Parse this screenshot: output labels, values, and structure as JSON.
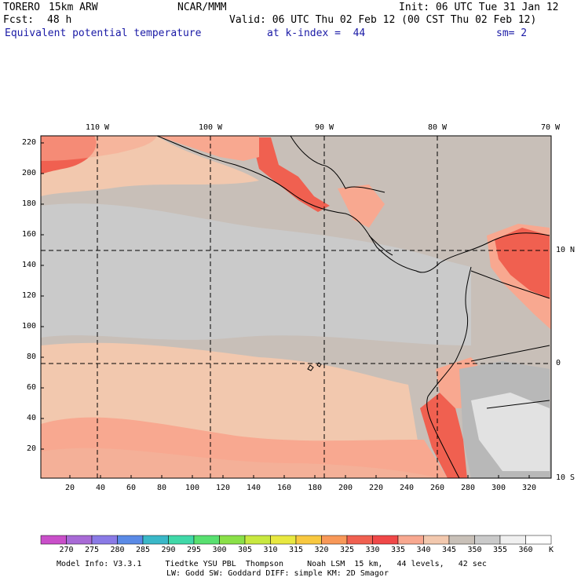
{
  "header": {
    "model": "TORERO",
    "resolution": "15km ARW",
    "org": "NCAR/MMM",
    "init": "Init: 06 UTC Tue 31 Jan 12",
    "fcst_label": "Fcst:",
    "fcst_value": "48 h",
    "valid": "Valid: 06 UTC Thu 02 Feb 12 (00 CST Thu 02 Feb 12)",
    "field": "Equivalent potential temperature",
    "level": "at k-index =  44",
    "smooth": "sm= 2"
  },
  "map": {
    "lon_labels": [
      "110 W",
      "100 W",
      "90 W",
      "80 W",
      "70 W"
    ],
    "lat_labels": [
      "10 N",
      "0",
      "10 S"
    ],
    "x_ticks": [
      "20",
      "40",
      "60",
      "80",
      "100",
      "120",
      "140",
      "160",
      "180",
      "200",
      "220",
      "240",
      "260",
      "280",
      "300",
      "320"
    ],
    "y_ticks": [
      "220",
      "200",
      "180",
      "160",
      "140",
      "120",
      "100",
      "80",
      "60",
      "40",
      "20"
    ]
  },
  "colorbar": {
    "labels": [
      "270",
      "275",
      "280",
      "285",
      "290",
      "295",
      "300",
      "305",
      "310",
      "315",
      "320",
      "325",
      "330",
      "335",
      "340",
      "345",
      "350",
      "355",
      "360"
    ],
    "unit": "K",
    "colors": [
      "#c94fc9",
      "#a86ad6",
      "#8a7ae6",
      "#5a8ae6",
      "#3ab8c8",
      "#40d8a8",
      "#58e070",
      "#8ae048",
      "#c8e840",
      "#e8e840",
      "#f8c840",
      "#f89858",
      "#f06050",
      "#f04848",
      "#f8a890",
      "#f2c8ae",
      "#c8c0b8",
      "#cacaca",
      "#f0f0f0"
    ],
    "top_color": "#ffffff"
  },
  "footer": {
    "line1": "Model Info: V3.3.1     Tiedtke YSU PBL  Thompson     Noah LSM  15 km,   44 levels,   42 sec",
    "line2": "LW: Godd SW: Goddard DIFF: simple KM: 2D Smagor"
  }
}
